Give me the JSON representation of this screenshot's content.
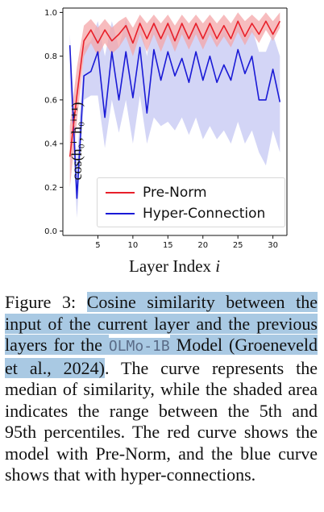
{
  "chart_data": {
    "type": "line",
    "x": [
      1,
      2,
      3,
      4,
      5,
      6,
      7,
      8,
      9,
      10,
      11,
      12,
      13,
      14,
      15,
      16,
      17,
      18,
      19,
      20,
      21,
      22,
      23,
      24,
      25,
      26,
      27,
      28,
      29,
      30,
      31
    ],
    "xlabel_prefix": "Layer Index ",
    "xlabel_var": "i",
    "ylabel": "cos(h₀ⁱ, h₀ⁱ⁺¹)",
    "xlim": [
      0,
      32
    ],
    "ylim": [
      -0.02,
      1.02
    ],
    "xticks": [
      "5",
      "10",
      "15",
      "20",
      "25",
      "30"
    ],
    "yticks": [
      "0.0",
      "0.2",
      "0.4",
      "0.6",
      "0.8",
      "1.0"
    ],
    "legend_position": "lower-right",
    "series": [
      {
        "name": "Pre-Norm",
        "color": "#e8202a",
        "band_color": "#f4a5a8",
        "values": [
          0.34,
          0.62,
          0.87,
          0.92,
          0.86,
          0.92,
          0.87,
          0.9,
          0.94,
          0.86,
          0.95,
          0.88,
          0.95,
          0.88,
          0.95,
          0.87,
          0.95,
          0.88,
          0.95,
          0.88,
          0.95,
          0.88,
          0.94,
          0.88,
          0.96,
          0.89,
          0.95,
          0.9,
          0.96,
          0.9,
          0.96
        ],
        "p5": [
          0.2,
          0.5,
          0.8,
          0.86,
          0.8,
          0.86,
          0.81,
          0.84,
          0.89,
          0.8,
          0.9,
          0.82,
          0.9,
          0.82,
          0.9,
          0.82,
          0.9,
          0.83,
          0.9,
          0.83,
          0.9,
          0.84,
          0.89,
          0.84,
          0.91,
          0.85,
          0.91,
          0.86,
          0.92,
          0.87,
          0.93
        ],
        "p95": [
          0.48,
          0.75,
          0.94,
          0.97,
          0.93,
          0.97,
          0.93,
          0.96,
          0.98,
          0.93,
          0.99,
          0.95,
          0.99,
          0.95,
          0.99,
          0.94,
          0.99,
          0.95,
          0.99,
          0.95,
          0.99,
          0.95,
          0.99,
          0.95,
          1.0,
          0.96,
          0.99,
          0.96,
          1.0,
          0.96,
          1.0
        ]
      },
      {
        "name": "Hyper-Connection",
        "color": "#1a1ad6",
        "band_color": "#c8cbf4",
        "values": [
          0.85,
          0.15,
          0.71,
          0.73,
          0.82,
          0.52,
          0.82,
          0.6,
          0.82,
          0.61,
          0.84,
          0.54,
          0.83,
          0.69,
          0.82,
          0.71,
          0.79,
          0.68,
          0.82,
          0.69,
          0.8,
          0.68,
          0.76,
          0.69,
          0.83,
          0.72,
          0.8,
          0.6,
          0.6,
          0.74,
          0.59
        ],
        "p5": [
          0.7,
          0.06,
          0.6,
          0.62,
          0.62,
          0.38,
          0.6,
          0.45,
          0.6,
          0.4,
          0.62,
          0.4,
          0.52,
          0.48,
          0.5,
          0.46,
          0.52,
          0.44,
          0.52,
          0.42,
          0.48,
          0.42,
          0.46,
          0.4,
          0.5,
          0.4,
          0.46,
          0.36,
          0.3,
          0.46,
          0.36
        ],
        "p95": [
          0.9,
          0.3,
          0.84,
          0.87,
          0.96,
          0.8,
          0.96,
          0.84,
          0.97,
          0.85,
          0.97,
          0.8,
          0.97,
          0.88,
          0.96,
          0.89,
          0.95,
          0.88,
          0.96,
          0.88,
          0.95,
          0.86,
          0.93,
          0.86,
          0.95,
          0.88,
          0.93,
          0.82,
          0.82,
          0.9,
          0.8
        ]
      }
    ]
  },
  "caption": {
    "fig_label": "Figure 3: ",
    "highlight_1": "Cosine similarity between the input of the current layer and the previous layers for the ",
    "model_name": "OLMo-1B",
    "highlight_2": " Model (Groeneveld et al., 2024)",
    "rest": ". The curve represents the median of similarity, while the shaded area indicates the range between the 5th and 95th percentiles. The red curve shows the model with Pre-Norm, and the blue curve shows that with hyper-connections."
  }
}
